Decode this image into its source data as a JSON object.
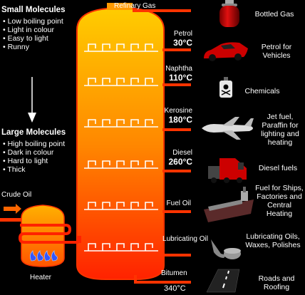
{
  "left_panel": {
    "small": {
      "title": "Small Molecules",
      "points": [
        "Low boiling point",
        "Light in colour",
        "Easy to light",
        "Runny"
      ]
    },
    "large": {
      "title": "Large Molecules",
      "points": [
        "High boiling point",
        "Dark in colour",
        "Hard to light",
        "Thick"
      ]
    },
    "crude_oil": "Crude Oil",
    "heater": "Heater"
  },
  "fractions": [
    {
      "name": "Refinary Gas",
      "product": "Bottled Gas",
      "product_icon": "gas-cylinder-icon"
    },
    {
      "name": "Petrol",
      "temp": "30",
      "unit": "°C",
      "product": "Petrol for Vehicles",
      "product_icon": "car-icon"
    },
    {
      "name": "Naphtha",
      "temp": "110",
      "unit": "°C",
      "product": "Chemicals",
      "product_icon": "poison-bottle-icon"
    },
    {
      "name": "Kerosine",
      "temp": "180",
      "unit": "°C",
      "product": "Jet fuel, Paraffin for lighting and heating",
      "product_icon": "jet-plane-icon"
    },
    {
      "name": "Diesel",
      "temp": "260",
      "unit": "°C",
      "product": "Diesel fuels",
      "product_icon": "truck-icon"
    },
    {
      "name": "Fuel Oil",
      "product": "Fuel for Ships, Factories and Central Heating",
      "product_icon": "ship-icon"
    },
    {
      "name": "Lubricating Oil",
      "product": "Lubricating Oils, Waxes, Polishes",
      "product_icon": "oil-can-icon"
    },
    {
      "name": "Bitumen",
      "temp": "340",
      "unit": "°C",
      "product": "Roads and Roofing",
      "product_icon": "road-icon"
    }
  ],
  "colors": {
    "column_top": "#ffcc00",
    "column_bottom": "#ff2200",
    "pipe": "#ff3300",
    "background": "#000000"
  }
}
